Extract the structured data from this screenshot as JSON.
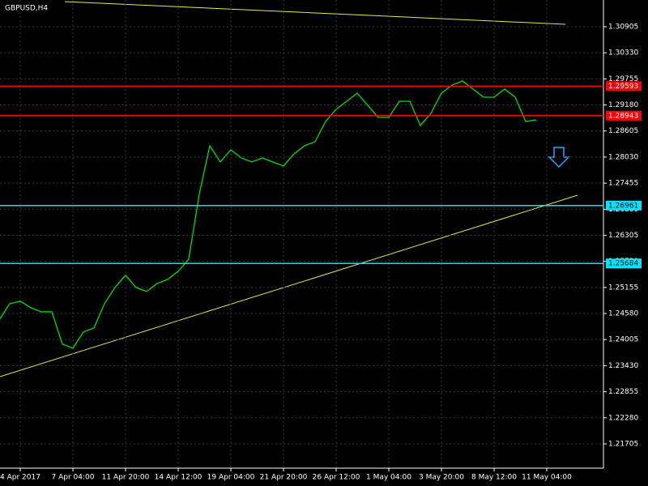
{
  "chart_data": {
    "type": "line",
    "title": "GBPUSD,H4",
    "categories": [
      null,
      null,
      "4 Apr 2017",
      null,
      null,
      null,
      null,
      "7 Apr 04:00",
      null,
      null,
      null,
      null,
      "11 Apr 20:00",
      null,
      null,
      null,
      null,
      "14 Apr 12:00",
      null,
      null,
      null,
      null,
      "19 Apr 04:00",
      null,
      null,
      null,
      null,
      "21 Apr 20:00",
      null,
      null,
      null,
      null,
      "26 Apr 12:00",
      null,
      null,
      null,
      null,
      "1 May 04:00",
      null,
      null,
      null,
      null,
      "3 May 20:00",
      null,
      null,
      null,
      null,
      "8 May 12:00",
      null,
      null,
      null,
      null,
      "11 May 04:00"
    ],
    "values": [
      1.24438,
      1.24797,
      1.24851,
      1.24708,
      1.24618,
      1.24618,
      1.23904,
      1.23815,
      1.24172,
      1.24261,
      1.24797,
      1.25154,
      1.25422,
      1.25154,
      1.25065,
      1.25243,
      1.25333,
      1.25511,
      1.25779,
      1.27208,
      1.28279,
      1.27922,
      1.2819,
      1.28011,
      1.27922,
      1.28011,
      1.27922,
      1.27833,
      1.281,
      1.28279,
      1.28368,
      1.28815,
      1.29083,
      1.29261,
      1.2944,
      1.29172,
      1.28904,
      1.28904,
      1.29261,
      1.29261,
      1.28726,
      1.28993,
      1.2944,
      1.29618,
      1.29708,
      1.29529,
      1.29351,
      1.29351,
      1.29529,
      1.29351,
      1.28815,
      1.28851,
      null
    ],
    "color": "#00e000",
    "ylim": [
      1.21169,
      1.31494
    ],
    "yticks": [
      1.30905,
      {
        "value": 1.3033,
        "label": "1.30330"
      },
      1.29755,
      {
        "value": 1.2918,
        "label": "1.29180"
      },
      1.28605,
      {
        "value": 1.2803,
        "label": "1.28030"
      },
      1.27455,
      {
        "value": 1.2688,
        "label": "1.26880"
      },
      1.26305,
      {
        "value": 1.2573,
        "label": "1.25730"
      },
      1.25155,
      {
        "value": 1.2458,
        "label": "1.24580"
      },
      1.24005,
      {
        "value": 1.2343,
        "label": "1.23430"
      },
      1.22855,
      {
        "value": 1.2228,
        "label": "1.22280"
      },
      1.21705
    ],
    "grid": true,
    "levels": {
      "values": [
        1.29593,
        1.28943,
        1.26961,
        1.25684
      ],
      "colors": [
        "#ff0000",
        "#ff0000",
        "#00e5ff",
        "#00e5ff"
      ]
    }
  }
}
